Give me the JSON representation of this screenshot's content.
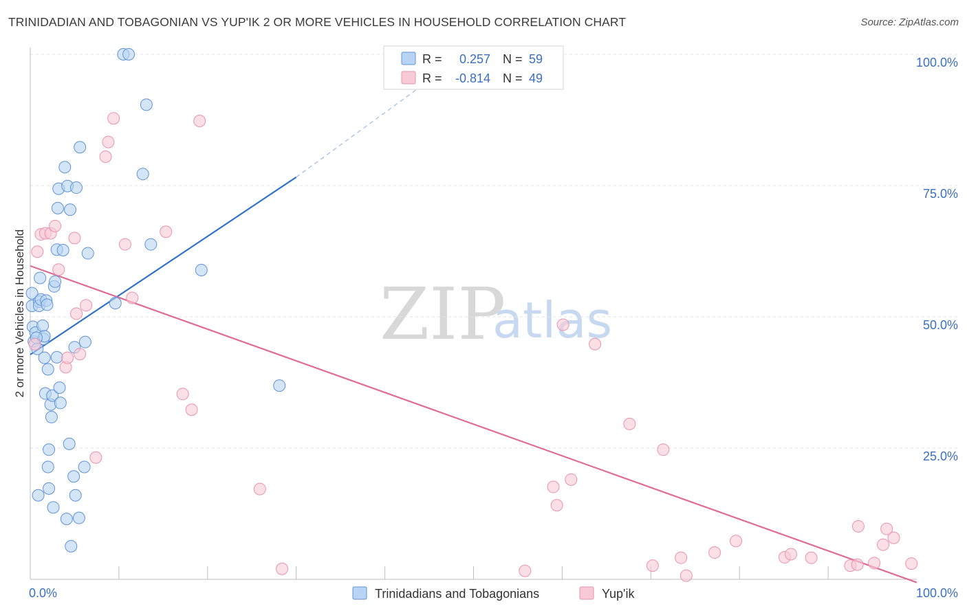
{
  "title": "TRINIDADIAN AND TOBAGONIAN VS YUP'IK 2 OR MORE VEHICLES IN HOUSEHOLD CORRELATION CHART",
  "source": "Source: ZipAtlas.com",
  "watermark": {
    "zip": "ZIP",
    "atlas": "atlas"
  },
  "colors": {
    "blue_fill": "#b8d3f3",
    "blue_stroke": "#5f93d8",
    "blue_line": "#2f72c9",
    "pink_fill": "#f8c9d7",
    "pink_stroke": "#e993ae",
    "pink_line": "#e06b96"
  },
  "stats": {
    "r_label": "R =",
    "n_label": "N =",
    "series": [
      {
        "r": "0.257",
        "n": "59"
      },
      {
        "r": "-0.814",
        "n": "49"
      }
    ]
  },
  "chart_data": {
    "type": "scatter",
    "title": "TRINIDADIAN AND TOBAGONIAN VS YUP'IK 2 OR MORE VEHICLES IN HOUSEHOLD CORRELATION CHART",
    "xlabel": "",
    "ylabel": "2 or more Vehicles in Household",
    "xlim": [
      0,
      100
    ],
    "ylim": [
      0,
      100
    ],
    "x_tick_labels": [
      "0.0%",
      "100.0%"
    ],
    "y_ticks": [
      {
        "value": 25,
        "label": "25.0%"
      },
      {
        "value": 50,
        "label": "50.0%"
      },
      {
        "value": 75,
        "label": "75.0%"
      },
      {
        "value": 100,
        "label": "100.0%"
      }
    ],
    "legend": [
      "Trinidadians and Tobagonians",
      "Yup'ik"
    ],
    "series": [
      {
        "name": "Trinidadians and Tobagonians",
        "trend": {
          "x0": 0,
          "y0": 42.8,
          "x1": 30,
          "y1": 76.6,
          "dash_to_x": 47,
          "dash_to_y": 97.5
        },
        "points": [
          [
            0.2,
            54.5
          ],
          [
            0.2,
            52.1
          ],
          [
            0.3,
            48.1
          ],
          [
            0.4,
            45.3
          ],
          [
            0.6,
            47.0
          ],
          [
            0.8,
            43.9
          ],
          [
            0.9,
            16.0
          ],
          [
            1.0,
            52.9
          ],
          [
            1.0,
            52.1
          ],
          [
            1.1,
            57.4
          ],
          [
            1.2,
            53.3
          ],
          [
            1.4,
            48.3
          ],
          [
            1.5,
            45.8
          ],
          [
            1.6,
            46.3
          ],
          [
            1.6,
            42.2
          ],
          [
            1.7,
            35.4
          ],
          [
            1.8,
            53.1
          ],
          [
            1.9,
            52.3
          ],
          [
            2.0,
            21.4
          ],
          [
            2.0,
            40.0
          ],
          [
            2.1,
            17.3
          ],
          [
            2.1,
            24.7
          ],
          [
            2.3,
            33.3
          ],
          [
            2.4,
            30.9
          ],
          [
            2.5,
            35.0
          ],
          [
            2.6,
            13.7
          ],
          [
            2.7,
            55.8
          ],
          [
            2.8,
            56.7
          ],
          [
            3.0,
            42.3
          ],
          [
            3.0,
            62.8
          ],
          [
            3.1,
            70.7
          ],
          [
            3.2,
            74.4
          ],
          [
            3.3,
            36.5
          ],
          [
            3.4,
            33.6
          ],
          [
            3.7,
            62.7
          ],
          [
            3.9,
            78.5
          ],
          [
            4.1,
            11.5
          ],
          [
            4.2,
            74.9
          ],
          [
            4.4,
            25.8
          ],
          [
            4.5,
            70.4
          ],
          [
            4.6,
            6.3
          ],
          [
            4.9,
            19.6
          ],
          [
            5.0,
            44.2
          ],
          [
            5.1,
            16.0
          ],
          [
            5.2,
            74.6
          ],
          [
            5.5,
            11.7
          ],
          [
            5.6,
            82.3
          ],
          [
            6.1,
            21.4
          ],
          [
            6.2,
            45.2
          ],
          [
            6.5,
            62.1
          ],
          [
            9.6,
            52.6
          ],
          [
            10.5,
            100
          ],
          [
            11.1,
            100
          ],
          [
            12.7,
            77.2
          ],
          [
            13.1,
            90.4
          ],
          [
            13.6,
            63.8
          ],
          [
            19.3,
            58.9
          ],
          [
            28.1,
            36.9
          ],
          [
            0.7,
            46.0
          ]
        ]
      },
      {
        "name": "Yup'ik",
        "trend": {
          "x0": 0,
          "y0": 59.7,
          "x1": 100,
          "y1": -0.6
        },
        "points": [
          [
            0.5,
            44.8
          ],
          [
            0.8,
            62.4
          ],
          [
            1.2,
            65.7
          ],
          [
            1.7,
            65.9
          ],
          [
            2.3,
            65.9
          ],
          [
            2.8,
            67.3
          ],
          [
            3.2,
            59.0
          ],
          [
            4.0,
            40.4
          ],
          [
            4.2,
            42.2
          ],
          [
            5.0,
            65.0
          ],
          [
            5.2,
            50.6
          ],
          [
            5.6,
            42.9
          ],
          [
            6.3,
            52.2
          ],
          [
            7.4,
            23.2
          ],
          [
            8.5,
            80.5
          ],
          [
            8.8,
            83.3
          ],
          [
            9.4,
            87.8
          ],
          [
            10.7,
            63.8
          ],
          [
            11.5,
            53.6
          ],
          [
            15.3,
            66.2
          ],
          [
            17.2,
            35.3
          ],
          [
            18.2,
            32.3
          ],
          [
            19.1,
            87.3
          ],
          [
            25.9,
            17.2
          ],
          [
            28.4,
            2.0
          ],
          [
            55.8,
            1.6
          ],
          [
            59.0,
            17.6
          ],
          [
            59.4,
            14.1
          ],
          [
            60.1,
            48.5
          ],
          [
            61.0,
            19.0
          ],
          [
            63.7,
            44.8
          ],
          [
            67.6,
            29.6
          ],
          [
            70.2,
            2.6
          ],
          [
            71.4,
            24.7
          ],
          [
            73.4,
            4.1
          ],
          [
            74.0,
            0.7
          ],
          [
            77.2,
            5.1
          ],
          [
            79.6,
            7.3
          ],
          [
            85.1,
            4.2
          ],
          [
            85.8,
            4.8
          ],
          [
            88.1,
            4.1
          ],
          [
            92.5,
            2.6
          ],
          [
            93.3,
            2.8
          ],
          [
            93.4,
            10.1
          ],
          [
            95.2,
            3.1
          ],
          [
            96.2,
            6.6
          ],
          [
            96.6,
            9.6
          ],
          [
            97.4,
            7.9
          ],
          [
            99.4,
            3.0
          ]
        ]
      }
    ]
  }
}
